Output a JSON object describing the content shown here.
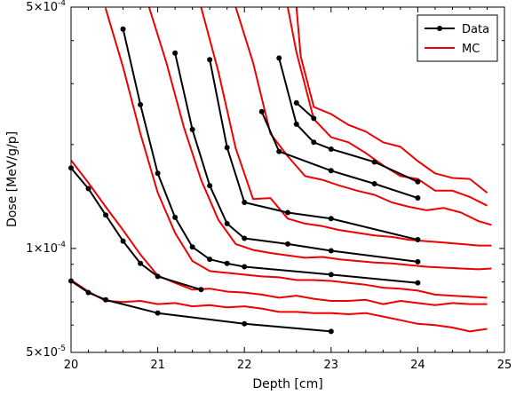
{
  "chart_data": {
    "type": "line",
    "title": "",
    "xlabel": "Depth [cm]",
    "ylabel": "Dose [MeV/g/p]",
    "xlim": [
      20,
      25
    ],
    "ylim": [
      5e-05,
      0.0005
    ],
    "yscale": "log",
    "xticks": [
      "20",
      "21",
      "22",
      "23",
      "24",
      "25"
    ],
    "yticks": [
      {
        "value": 5e-05,
        "mantissa": "5",
        "exponent": "-5"
      },
      {
        "value": 0.0001,
        "mantissa": "1",
        "exponent": "-4"
      },
      {
        "value": 0.0005,
        "mantissa": "5",
        "exponent": "-4"
      }
    ],
    "grid": false,
    "legend_position": "top-right",
    "colors": {
      "Data": "#000000",
      "MC": "#ee0000"
    },
    "series": [
      {
        "name": "Data",
        "color": "#000000",
        "marker": "circle",
        "curves": [
          [
            [
              20.0,
              8.05e-05
            ],
            [
              20.2,
              7.45e-05
            ],
            [
              20.4,
              7.1e-05
            ],
            [
              21.0,
              6.5e-05
            ],
            [
              22.0,
              6.05e-05
            ],
            [
              23.0,
              5.75e-05
            ]
          ],
          [
            [
              20.0,
              0.000171
            ],
            [
              20.2,
              0.000149
            ],
            [
              20.4,
              0.000125
            ],
            [
              20.6,
              0.000105
            ],
            [
              20.8,
              9.05e-05
            ],
            [
              21.0,
              8.3e-05
            ],
            [
              21.5,
              7.6e-05
            ]
          ],
          [
            [
              20.6,
              0.000432
            ],
            [
              20.8,
              0.000261
            ],
            [
              21.0,
              0.000165
            ],
            [
              21.2,
              0.000123
            ],
            [
              21.4,
              0.000101
            ],
            [
              21.6,
              9.3e-05
            ],
            [
              21.8,
              9.05e-05
            ],
            [
              22.0,
              8.85e-05
            ],
            [
              23.0,
              8.4e-05
            ],
            [
              24.0,
              7.95e-05
            ]
          ],
          [
            [
              21.2,
              0.000368
            ],
            [
              21.4,
              0.000221
            ],
            [
              21.6,
              0.000152
            ],
            [
              21.8,
              0.000118
            ],
            [
              22.0,
              0.000107
            ],
            [
              22.5,
              0.000103
            ],
            [
              23.0,
              9.85e-05
            ],
            [
              24.0,
              9.15e-05
            ]
          ],
          [
            [
              21.6,
              0.000352
            ],
            [
              21.8,
              0.000196
            ],
            [
              22.0,
              0.000136
            ],
            [
              22.5,
              0.000127
            ],
            [
              23.0,
              0.000122
            ],
            [
              24.0,
              0.000106
            ]
          ],
          [
            [
              22.2,
              0.000249
            ],
            [
              22.4,
              0.000191
            ],
            [
              23.0,
              0.000168
            ],
            [
              23.5,
              0.000154
            ],
            [
              24.0,
              0.00014
            ]
          ],
          [
            [
              22.4,
              0.000356
            ],
            [
              22.6,
              0.000229
            ],
            [
              22.8,
              0.000203
            ],
            [
              23.0,
              0.000194
            ],
            [
              23.5,
              0.000178
            ],
            [
              24.0,
              0.000156
            ]
          ],
          [
            [
              22.6,
              0.000264
            ],
            [
              22.8,
              0.000238
            ]
          ]
        ]
      },
      {
        "name": "MC",
        "color": "#ee0000",
        "marker": "none",
        "curves": [
          [
            [
              20.0,
              8.1e-05
            ],
            [
              20.2,
              7.5e-05
            ],
            [
              20.4,
              7.05e-05
            ],
            [
              20.6,
              7e-05
            ],
            [
              20.8,
              7.05e-05
            ],
            [
              21.0,
              6.9e-05
            ],
            [
              21.2,
              6.95e-05
            ],
            [
              21.4,
              6.8e-05
            ],
            [
              21.6,
              6.85e-05
            ],
            [
              21.8,
              6.75e-05
            ],
            [
              22.0,
              6.8e-05
            ],
            [
              22.2,
              6.7e-05
            ],
            [
              22.4,
              6.55e-05
            ],
            [
              22.6,
              6.55e-05
            ],
            [
              22.8,
              6.5e-05
            ],
            [
              23.0,
              6.5e-05
            ],
            [
              23.2,
              6.45e-05
            ],
            [
              23.4,
              6.5e-05
            ],
            [
              23.6,
              6.35e-05
            ],
            [
              23.8,
              6.2e-05
            ],
            [
              24.0,
              6.05e-05
            ],
            [
              24.2,
              6e-05
            ],
            [
              24.4,
              5.9e-05
            ],
            [
              24.6,
              5.75e-05
            ],
            [
              24.8,
              5.85e-05
            ]
          ],
          [
            [
              20.0,
              0.00018
            ],
            [
              20.2,
              0.000155
            ],
            [
              20.4,
              0.000132
            ],
            [
              20.6,
              0.000113
            ],
            [
              20.8,
              9.6e-05
            ],
            [
              21.0,
              8.35e-05
            ],
            [
              21.2,
              7.95e-05
            ],
            [
              21.4,
              7.6e-05
            ],
            [
              21.6,
              7.65e-05
            ],
            [
              21.8,
              7.5e-05
            ],
            [
              22.0,
              7.45e-05
            ],
            [
              22.2,
              7.35e-05
            ],
            [
              22.4,
              7.2e-05
            ],
            [
              22.6,
              7.3e-05
            ],
            [
              22.8,
              7.15e-05
            ],
            [
              23.0,
              7.05e-05
            ],
            [
              23.2,
              7.05e-05
            ],
            [
              23.4,
              7.1e-05
            ],
            [
              23.6,
              6.9e-05
            ],
            [
              23.8,
              7.05e-05
            ],
            [
              24.0,
              6.95e-05
            ],
            [
              24.2,
              6.85e-05
            ],
            [
              24.4,
              6.95e-05
            ],
            [
              24.6,
              6.9e-05
            ],
            [
              24.8,
              6.9e-05
            ]
          ],
          [
            [
              20.4,
              0.000495
            ],
            [
              20.6,
              0.000335
            ],
            [
              20.8,
              0.000215
            ],
            [
              21.0,
              0.000145
            ],
            [
              21.2,
              0.000111
            ],
            [
              21.4,
              9.2e-05
            ],
            [
              21.6,
              8.6e-05
            ],
            [
              21.8,
              8.5e-05
            ],
            [
              22.0,
              8.4e-05
            ],
            [
              22.2,
              8.3e-05
            ],
            [
              22.4,
              8.25e-05
            ],
            [
              22.6,
              8.1e-05
            ],
            [
              22.8,
              8.1e-05
            ],
            [
              23.0,
              8.05e-05
            ],
            [
              23.2,
              7.95e-05
            ],
            [
              23.4,
              7.85e-05
            ],
            [
              23.6,
              7.7e-05
            ],
            [
              23.8,
              7.65e-05
            ],
            [
              24.0,
              7.55e-05
            ],
            [
              24.2,
              7.35e-05
            ],
            [
              24.4,
              7.3e-05
            ],
            [
              24.6,
              7.25e-05
            ],
            [
              24.8,
              7.2e-05
            ]
          ],
          [
            [
              20.9,
              0.0005
            ],
            [
              21.1,
              0.000345
            ],
            [
              21.3,
              0.000225
            ],
            [
              21.5,
              0.000158
            ],
            [
              21.7,
              0.000121
            ],
            [
              21.9,
              0.000103
            ],
            [
              22.1,
              9.9e-05
            ],
            [
              22.3,
              9.7e-05
            ],
            [
              22.5,
              9.55e-05
            ],
            [
              22.7,
              9.4e-05
            ],
            [
              22.9,
              9.45e-05
            ],
            [
              23.1,
              9.3e-05
            ],
            [
              23.3,
              9.2e-05
            ],
            [
              23.5,
              9.1e-05
            ],
            [
              23.7,
              9.05e-05
            ],
            [
              23.9,
              8.95e-05
            ],
            [
              24.1,
              8.85e-05
            ],
            [
              24.3,
              8.8e-05
            ],
            [
              24.5,
              8.75e-05
            ],
            [
              24.7,
              8.7e-05
            ],
            [
              24.85,
              8.75e-05
            ]
          ],
          [
            [
              21.5,
              0.0005
            ],
            [
              21.7,
              0.000325
            ],
            [
              21.9,
              0.000195
            ],
            [
              22.1,
              0.000139
            ],
            [
              22.3,
              0.00014
            ],
            [
              22.5,
              0.000122
            ],
            [
              22.7,
              0.000118
            ],
            [
              22.9,
              0.000116
            ],
            [
              23.1,
              0.000113
            ],
            [
              23.3,
              0.000111
            ],
            [
              23.5,
              0.000109
            ],
            [
              23.7,
              0.000108
            ],
            [
              23.9,
              0.000106
            ],
            [
              24.1,
              0.000105
            ],
            [
              24.3,
              0.000104
            ],
            [
              24.5,
              0.000103
            ],
            [
              24.7,
              0.000102
            ],
            [
              24.85,
              0.000102
            ]
          ],
          [
            [
              21.9,
              0.0005
            ],
            [
              22.1,
              0.000345
            ],
            [
              22.3,
              0.000215
            ],
            [
              22.5,
              0.000185
            ],
            [
              22.7,
              0.000162
            ],
            [
              22.9,
              0.000158
            ],
            [
              23.1,
              0.000152
            ],
            [
              23.3,
              0.000147
            ],
            [
              23.5,
              0.000143
            ],
            [
              23.7,
              0.000136
            ],
            [
              23.9,
              0.000132
            ],
            [
              24.1,
              0.000129
            ],
            [
              24.3,
              0.000131
            ],
            [
              24.5,
              0.000127
            ],
            [
              24.7,
              0.00012
            ],
            [
              24.85,
              0.000117
            ]
          ],
          [
            [
              22.5,
              0.0005
            ],
            [
              22.6,
              0.00037
            ],
            [
              22.8,
              0.000237
            ],
            [
              23.0,
              0.00021
            ],
            [
              23.2,
              0.000203
            ],
            [
              23.4,
              0.000189
            ],
            [
              23.6,
              0.000174
            ],
            [
              23.8,
              0.000162
            ],
            [
              24.0,
              0.000159
            ],
            [
              24.2,
              0.000147
            ],
            [
              24.4,
              0.000147
            ],
            [
              24.6,
              0.000141
            ],
            [
              24.8,
              0.000133
            ]
          ],
          [
            [
              22.6,
              0.0005
            ],
            [
              22.65,
              0.00036
            ],
            [
              22.8,
              0.000257
            ],
            [
              23.0,
              0.000245
            ],
            [
              23.2,
              0.000228
            ],
            [
              23.4,
              0.000218
            ],
            [
              23.6,
              0.000203
            ],
            [
              23.8,
              0.000197
            ],
            [
              24.0,
              0.000179
            ],
            [
              24.2,
              0.000165
            ],
            [
              24.4,
              0.00016
            ],
            [
              24.6,
              0.000159
            ],
            [
              24.8,
              0.000145
            ]
          ]
        ]
      }
    ]
  }
}
